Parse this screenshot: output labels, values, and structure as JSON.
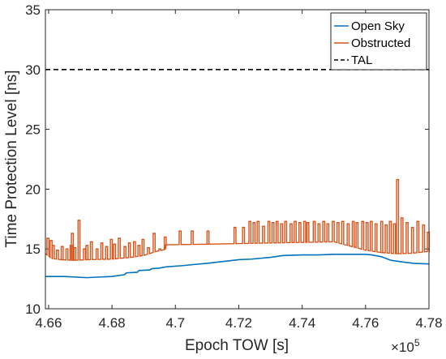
{
  "chart_data": {
    "type": "line",
    "xlabel": "Epoch TOW [s]",
    "ylabel": "Time Protection Level [ns]",
    "x_multiplier_label": "×10",
    "x_multiplier_exponent": "5",
    "xlim": [
      4.659,
      4.78
    ],
    "ylim": [
      10,
      35
    ],
    "x_ticks": [
      4.66,
      4.68,
      4.7,
      4.72,
      4.74,
      4.76,
      4.78
    ],
    "x_tick_labels": [
      "4.66",
      "4.68",
      "4.7",
      "4.72",
      "4.74",
      "4.76",
      "4.78"
    ],
    "y_ticks": [
      10,
      15,
      20,
      25,
      30,
      35
    ],
    "y_tick_labels": [
      "10",
      "15",
      "20",
      "25",
      "30",
      "35"
    ],
    "grid": false,
    "legend_position": "top-right",
    "colors": {
      "open_sky": "#0072BD",
      "obstructed": "#D95319",
      "tal": "#000000"
    },
    "series": [
      {
        "name": "Open Sky",
        "style": "solid",
        "x": [
          4.659,
          4.665,
          4.672,
          4.68,
          4.684,
          4.6845,
          4.688,
          4.6885,
          4.692,
          4.6925,
          4.695,
          4.697,
          4.702,
          4.704,
          4.706,
          4.71,
          4.715,
          4.72,
          4.724,
          4.73,
          4.734,
          4.74,
          4.745,
          4.75,
          4.755,
          4.76,
          4.762,
          4.765,
          4.768,
          4.772,
          4.775,
          4.78
        ],
        "y": [
          12.7,
          12.7,
          12.6,
          12.7,
          12.85,
          13.0,
          13.05,
          13.2,
          13.25,
          13.35,
          13.4,
          13.5,
          13.6,
          13.65,
          13.7,
          13.8,
          13.95,
          14.1,
          14.15,
          14.3,
          14.45,
          14.5,
          14.5,
          14.55,
          14.55,
          14.55,
          14.5,
          14.35,
          14.05,
          13.9,
          13.8,
          13.75
        ]
      },
      {
        "name": "Obstructed",
        "style": "solid",
        "baseline_x": [
          4.659,
          4.661,
          4.664,
          4.668,
          4.672,
          4.68,
          4.686,
          4.69,
          4.694,
          4.6968,
          4.6969,
          4.71,
          4.72,
          4.73,
          4.74,
          4.75,
          4.76,
          4.765,
          4.77,
          4.775,
          4.78
        ],
        "baseline_y": [
          14.6,
          14.2,
          14.1,
          14.05,
          14.1,
          14.15,
          14.3,
          14.45,
          14.8,
          14.95,
          15.35,
          15.4,
          15.45,
          15.5,
          15.55,
          15.6,
          14.9,
          14.7,
          14.6,
          14.65,
          14.8
        ],
        "spikes": [
          [
            4.6595,
            15.9
          ],
          [
            4.6605,
            15.7
          ],
          [
            4.6612,
            15.3
          ],
          [
            4.6625,
            14.9
          ],
          [
            4.664,
            15.2
          ],
          [
            4.6655,
            15.0
          ],
          [
            4.6668,
            15.3
          ],
          [
            4.6672,
            16.3
          ],
          [
            4.668,
            15.1
          ],
          [
            4.6693,
            17.4
          ],
          [
            4.671,
            15.0
          ],
          [
            4.6718,
            15.3
          ],
          [
            4.6732,
            15.6
          ],
          [
            4.675,
            15.0
          ],
          [
            4.6765,
            15.5
          ],
          [
            4.678,
            15.2
          ],
          [
            4.6795,
            15.8
          ],
          [
            4.6805,
            15.4
          ],
          [
            4.682,
            15.9
          ],
          [
            4.6838,
            15.2
          ],
          [
            4.6852,
            15.5
          ],
          [
            4.6868,
            15.6
          ],
          [
            4.6882,
            15.3
          ],
          [
            4.6895,
            15.8
          ],
          [
            4.6912,
            15.1
          ],
          [
            4.693,
            16.3
          ],
          [
            4.6948,
            15.0
          ],
          [
            4.6965,
            16.0
          ],
          [
            4.7012,
            16.5
          ],
          [
            4.705,
            16.5
          ],
          [
            4.71,
            16.5
          ],
          [
            4.7185,
            16.8
          ],
          [
            4.7212,
            16.8
          ],
          [
            4.7232,
            17.3
          ],
          [
            4.7245,
            17.2
          ],
          [
            4.7258,
            17.3
          ],
          [
            4.7275,
            16.9
          ],
          [
            4.7292,
            17.3
          ],
          [
            4.7305,
            17.2
          ],
          [
            4.7318,
            17.3
          ],
          [
            4.7332,
            17.1
          ],
          [
            4.7345,
            17.3
          ],
          [
            4.7362,
            17.1
          ],
          [
            4.7375,
            17.3
          ],
          [
            4.739,
            17.2
          ],
          [
            4.7405,
            17.3
          ],
          [
            4.7415,
            17.2
          ],
          [
            4.7435,
            17.3
          ],
          [
            4.745,
            17.1
          ],
          [
            4.7465,
            17.3
          ],
          [
            4.7478,
            17.1
          ],
          [
            4.7495,
            17.3
          ],
          [
            4.751,
            17.2
          ],
          [
            4.7525,
            17.3
          ],
          [
            4.7542,
            17.1
          ],
          [
            4.7558,
            17.3
          ],
          [
            4.757,
            17.2
          ],
          [
            4.7588,
            17.3
          ],
          [
            4.7602,
            17.2
          ],
          [
            4.7615,
            17.3
          ],
          [
            4.763,
            17.1
          ],
          [
            4.7648,
            17.3
          ],
          [
            4.7662,
            17.0
          ],
          [
            4.7675,
            17.3
          ],
          [
            4.7688,
            17.1
          ],
          [
            4.7698,
            20.8
          ],
          [
            4.7712,
            17.6
          ],
          [
            4.7728,
            17.2
          ],
          [
            4.7745,
            16.8
          ],
          [
            4.7762,
            17.3
          ],
          [
            4.778,
            17.0
          ],
          [
            4.7795,
            16.4
          ]
        ]
      },
      {
        "name": "TAL",
        "style": "dashed",
        "x": [
          4.659,
          4.78
        ],
        "y": [
          30,
          30
        ]
      }
    ]
  }
}
